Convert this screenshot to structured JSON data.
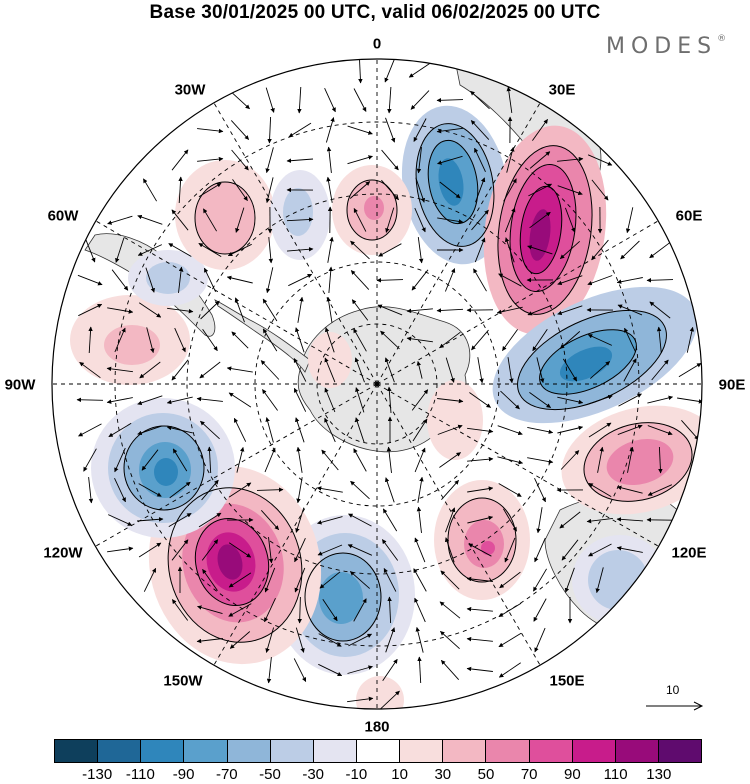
{
  "title": "Base 30/01/2025 00 UTC, valid 06/02/2025 00 UTC",
  "brand": "MODES",
  "brand_mark": "®",
  "longitude_labels": {
    "lon_0": "0",
    "lon_30e": "30E",
    "lon_60e": "60E",
    "lon_90e": "90E",
    "lon_120e": "120E",
    "lon_150e": "150E",
    "lon_180": "180",
    "lon_150w": "150W",
    "lon_120w": "120W",
    "lon_90w": "90W",
    "lon_60w": "60W",
    "lon_30w": "30W"
  },
  "reference_vector": {
    "label": "10",
    "value": 10
  },
  "colorbar": {
    "colors": [
      "#0e3f5c",
      "#1f6797",
      "#2f86bb",
      "#5aa0cc",
      "#8fb6d9",
      "#bccde6",
      "#e4e4f1",
      "#ffffff",
      "#f8dedd",
      "#f3b8c3",
      "#ea86ac",
      "#df4f9c",
      "#c81c8b",
      "#980b7a",
      "#5f0b6e"
    ],
    "tick_labels": [
      "-130",
      "-110",
      "-90",
      "-70",
      "-50",
      "-30",
      "-10",
      "10",
      "30",
      "50",
      "70",
      "90",
      "110",
      "130"
    ]
  },
  "map": {
    "projection": "south-polar-stereographic",
    "land_color": "#e6e6e6",
    "field": "anomaly-shading-with-wind-vectors"
  }
}
